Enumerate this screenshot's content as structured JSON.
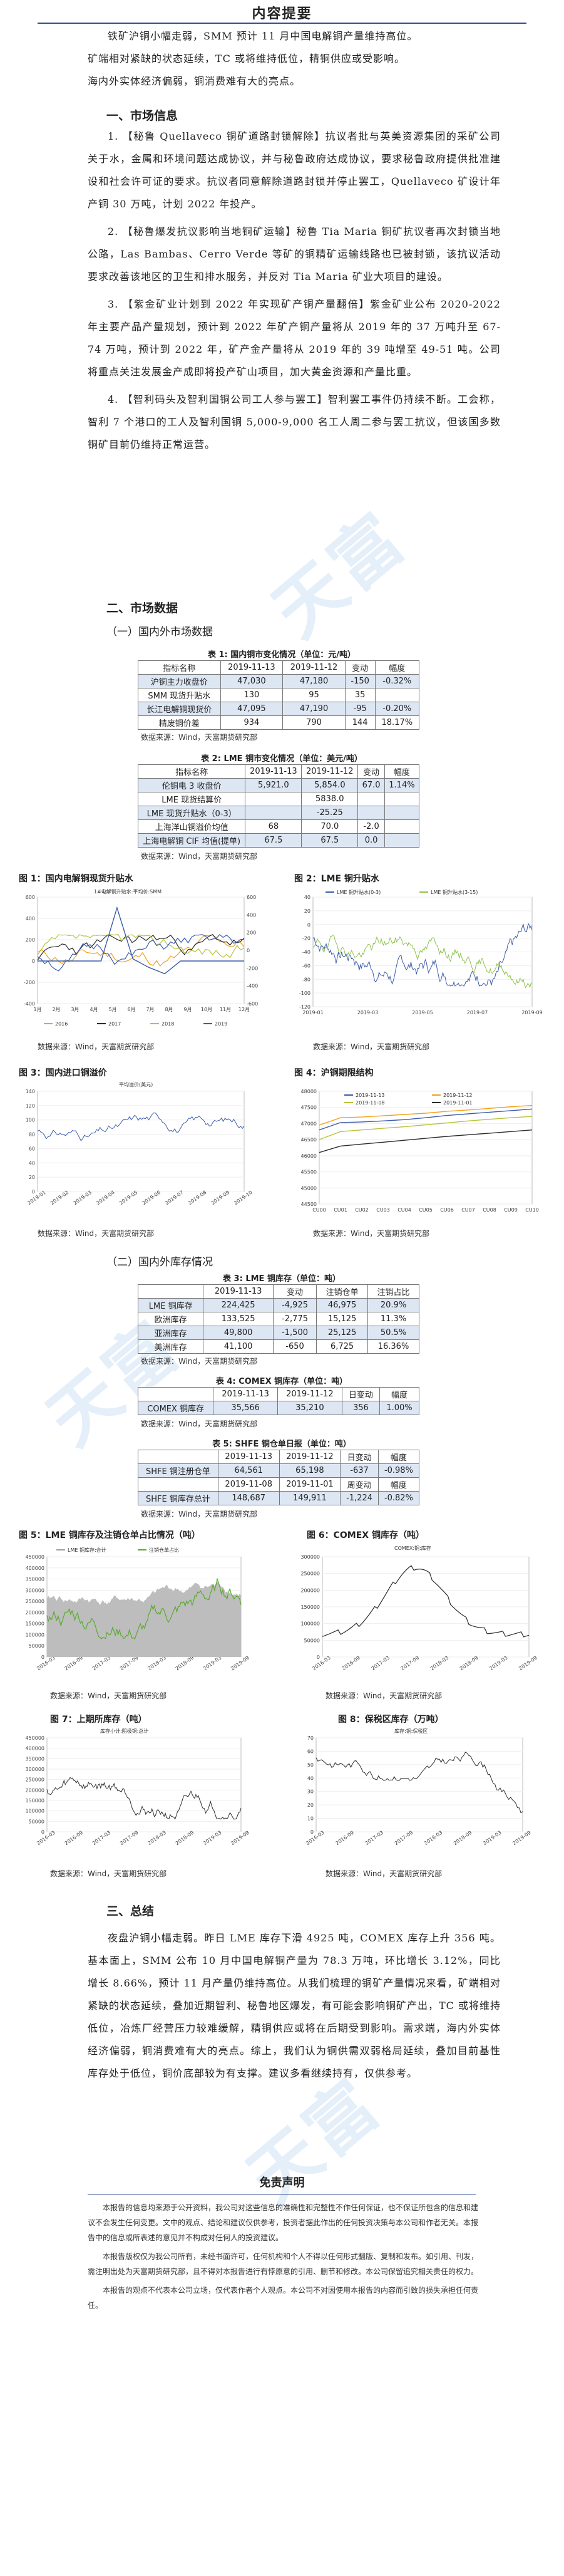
{
  "header": {
    "title": "内容提要"
  },
  "summary": [
    "铁矿沪铜小幅走弱，SMM 预计 11 月中国电解铜产量维持高位。",
    "矿端相对紧缺的状态延续，TC 或将维持低位，精铜供应或受影响。",
    "海内外实体经济偏弱，铜消费难有大的亮点。"
  ],
  "section1": {
    "heading": "一、市场信息",
    "items": [
      "1. 【秘鲁 Quellaveco 铜矿道路封锁解除】抗议者批与英美资源集团的采矿公司关于水，金属和环境问题达成协议，并与秘鲁政府达成协议，要求秘鲁政府提供批准建设和社会许可证的要求。抗议者同意解除道路封锁并停止罢工，Quellaveco 矿设计年产铜 30 万吨，计划 2022 年投产。",
      "2. 【秘鲁爆发抗议影响当地铜矿运输】秘鲁 Tia Maria 铜矿抗议者再次封锁当地公路，Las Bambas、Cerro Verde 等矿的铜精矿运输线路也已被封锁，该抗议活动要求改善该地区的卫生和排水服务，并反对 Tia Maria 矿业大项目的建设。",
      "3. 【紫金矿业计划到 2022 年实现矿产铜产量翻倍】紫金矿业公布 2020-2022 年主要产品产量规划，预计到 2022 年矿产铜产量将从 2019 年的 37 万吨升至 67-74 万吨，预计到 2022 年，矿产金产量将从 2019 年的 39 吨增至 49-51 吨。公司将重点关注发展金产成即将投产矿山项目，加大黄金资源和产量比重。",
      "4. 【智利码头及智利国铜公司工人参与罢工】智利罢工事件仍持续不断。工会称，智利 7 个港口的工人及智利国铜 5,000-9,000 名工人周二参与罢工抗议，但该国多数铜矿目前仍维持正常运营。"
    ]
  },
  "section2": {
    "heading": "二、市场数据",
    "sub1": "（一）国内外市场数据",
    "sub2": "（二）国内外库存情况"
  },
  "table1": {
    "caption": "表 1: 国内铜市变化情况（单位：元/吨）",
    "headers": [
      "指标名称",
      "2019-11-13",
      "2019-11-12",
      "变动",
      "幅度"
    ],
    "rows": [
      [
        "沪铜主力收盘价",
        "47,030",
        "47,180",
        "-150",
        "-0.32%"
      ],
      [
        "SMM 现货升贴水",
        "130",
        "95",
        "35",
        ""
      ],
      [
        "长江电解铜现货价",
        "47,095",
        "47,190",
        "-95",
        "-0.20%"
      ],
      [
        "精废铜价差",
        "934",
        "790",
        "144",
        "18.17%"
      ]
    ],
    "source": "数据来源：Wind，天富期货研究部"
  },
  "table2": {
    "caption": "表 2: LME 铜市变化情况（单位：美元/吨）",
    "headers": [
      "指标名称",
      "2019-11-13",
      "2019-11-12",
      "变动",
      "幅度"
    ],
    "rows": [
      [
        "伦铜电 3 收盘价",
        "5,921.0",
        "5,854.0",
        "67.0",
        "1.14%"
      ],
      [
        "LME 现货结算价",
        "",
        "5838.0",
        "",
        ""
      ],
      [
        "LME 现货升贴水（0-3）",
        "",
        "-25.25",
        "",
        ""
      ],
      [
        "上海洋山铜溢价均值",
        "68",
        "70.0",
        "-2.0",
        ""
      ],
      [
        "上海电解铜 CIF 均值(提单)",
        "67.5",
        "67.5",
        "0.0",
        ""
      ]
    ],
    "source": "数据来源：Wind，天富期货研究部"
  },
  "fig1": {
    "title": "图 1：国内电解铜现货升贴水",
    "source": "数据来源：Wind，天富期货研究部"
  },
  "fig2": {
    "title": "图 2：LME 铜升贴水",
    "source": "数据来源：Wind，天富期货研究部"
  },
  "fig3": {
    "title": "图 3：国内进口铜溢价",
    "source": "数据来源：Wind，天富期货研究部"
  },
  "fig4": {
    "title": "图 4：沪铜期限结构",
    "source": "数据来源：Wind，天富期货研究部"
  },
  "chart_data": [
    {
      "type": "line",
      "title": "图 1：国内电解铜现货升贴水",
      "series_legend_top": "1#电解铜升贴水:平均价:SMM",
      "x_ticks": [
        "1月",
        "2月",
        "3月",
        "4月",
        "5月",
        "6月",
        "7月",
        "8月",
        "9月",
        "10月",
        "11月",
        "12月"
      ],
      "left_axis": [
        600,
        400,
        200,
        0,
        -200,
        -400
      ],
      "right_axis": [
        600,
        400,
        200,
        0,
        -200,
        -400,
        -600
      ],
      "legend": [
        "2016",
        "2017",
        "2018",
        "2019"
      ],
      "colors": [
        "#f2a01c",
        "#2b2b2b",
        "#b7c338",
        "#3b5bab"
      ]
    },
    {
      "type": "line",
      "title": "图 2：LME 铜升贴水",
      "legend": [
        "LME 铜升贴水(0-3)",
        "LME 铜升贴水(3-15)"
      ],
      "y_ticks": [
        40,
        20,
        0,
        -20,
        -40,
        -60,
        -80,
        -100,
        -120
      ],
      "x_ticks": [
        "2019-01",
        "2019-03",
        "2019-05",
        "2019-07",
        "2019-09"
      ],
      "colors": [
        "#3b5bab",
        "#8cc24a"
      ]
    },
    {
      "type": "line",
      "title": "图 3：国内进口铜溢价",
      "legend": [
        "平均溢价(美元)"
      ],
      "y_ticks": [
        140,
        120,
        100,
        80,
        60,
        40,
        20,
        0
      ],
      "x_ticks": [
        "2019-01",
        "2019-02",
        "2019-03",
        "2019-04",
        "2019-05",
        "2019-06",
        "2019-07",
        "2019-08",
        "2019-09",
        "2019-10"
      ]
    },
    {
      "type": "line",
      "title": "图 4：沪铜期限结构",
      "legend": [
        "2019-11-13",
        "2019-11-12",
        "2019-11-08",
        "2019-11-01"
      ],
      "y_ticks": [
        48000,
        47500,
        47000,
        46500,
        46000,
        45500,
        45000,
        44500
      ],
      "x_ticks": [
        "CU00",
        "CU01",
        "CU02",
        "CU03",
        "CU04",
        "CU05",
        "CU06",
        "CU07",
        "CU08",
        "CU09",
        "CU10"
      ]
    }
  ],
  "table3": {
    "caption": "表 3: LME 铜库存（单位：吨）",
    "headers": [
      "",
      "2019-11-13",
      "变动",
      "注销仓单",
      "注销占比"
    ],
    "rows": [
      [
        "LME 铜库存",
        "224,425",
        "-4,925",
        "46,975",
        "20.9%"
      ],
      [
        "欧洲库存",
        "133,525",
        "-2,775",
        "15,125",
        "11.3%"
      ],
      [
        "亚洲库存",
        "49,800",
        "-1,500",
        "25,125",
        "50.5%"
      ],
      [
        "美洲库存",
        "41,100",
        "-650",
        "6,725",
        "16.36%"
      ]
    ],
    "source": "数据来源：Wind，天富期货研究部"
  },
  "table4": {
    "caption": "表 4: COMEX 铜库存（单位：吨）",
    "headers": [
      "",
      "2019-11-13",
      "2019-11-12",
      "日变动",
      "幅度"
    ],
    "rows": [
      [
        "COMEX 铜库存",
        "35,566",
        "35,210",
        "356",
        "1.00%"
      ]
    ],
    "source": "数据来源：Wind，天富期货研究部"
  },
  "table5": {
    "caption": "表 5: SHFE 铜仓单日报（单位：吨）",
    "headers": [
      "",
      "2019-11-13",
      "2019-11-12",
      "日变动",
      "幅度"
    ],
    "rows": [
      [
        "SHFE 铜注册仓单",
        "64,561",
        "65,198",
        "-637",
        "-0.98%"
      ],
      [
        "",
        "2019-11-08",
        "2019-11-01",
        "周变动",
        "幅度"
      ],
      [
        "SHFE 铜库存总计",
        "148,687",
        "149,911",
        "-1,224",
        "-0.82%"
      ]
    ],
    "source": "数据来源：Wind，天富期货研究部"
  },
  "fig5": {
    "title": "图 5：LME 铜库存及注销仓单占比情况（吨）",
    "legend": [
      "LME 铜库存:合计",
      "注销仓单占比"
    ],
    "source": "数据来源：Wind，天富期货研究部"
  },
  "fig6": {
    "title": "图 6：COMEX 铜库存（吨）",
    "legend": [
      "COMEX:铜:库存"
    ],
    "source": "数据来源：Wind，天富期货研究部"
  },
  "fig7": {
    "title": "图 7：上期所库存（吨）",
    "legend": [
      "库存小计:阴极铜:总计"
    ],
    "source": "数据来源：Wind，天富期货研究部"
  },
  "fig8": {
    "title": "图 8：保税区库存（万吨）",
    "legend": [
      "库存:铜:保税区"
    ],
    "source": "数据来源：Wind，天富期货研究部"
  },
  "section3": {
    "heading": "三、总结",
    "text": "夜盘沪铜小幅走弱。昨日 LME 库存下滑 4925 吨，COMEX 库存上升 356 吨。基本面上，SMM 公布 10 月中国电解铜产量为 78.3 万吨，环比增长 3.12%，同比增长 8.66%，预计 11 月产量仍维持高位。从我们梳理的铜矿产量情况来看，矿端相对紧缺的状态延续，叠加近期智利、秘鲁地区爆发，有可能会影响铜矿产出，TC 或将维持低位，冶炼厂经营压力较难缓解，精铜供应或将在后期受到影响。需求端，海内外实体经济偏弱，铜消费难有大的亮点。综上，我们认为铜供需双弱格局延续，叠加目前基性库存处于低位，铜价底部较为有支撑。建议多看继续持有，仅供参考。"
  },
  "disclaimer": {
    "title": "免责声明",
    "paras": [
      "本报告的信息均来源于公开资料，我公司对这些信息的准确性和完整性不作任何保证，也不保证所包含的信息和建议不会发生任何变更。文中的观点、结论和建议仅供参考，投资者据此作出的任何投资决策与本公司和作者无关。本报告中的信息或所表述的意见并不构成对任何人的投资建议。",
      "本报告版权仅为我公司所有，未经书面许可，任何机构和个人不得以任何形式翻版、复制和发布。如引用、刊发，需注明出处为天富期货研究部，且不得对本报告进行有悖原意的引用、删节和修改。本公司保留追究相关责任的权力。",
      "本报告的观点不代表本公司立场，仅代表作者个人观点。本公司不对因使用本报告的内容而引致的损失承担任何责任。"
    ]
  },
  "watermark": {
    "text": "天富期货"
  }
}
